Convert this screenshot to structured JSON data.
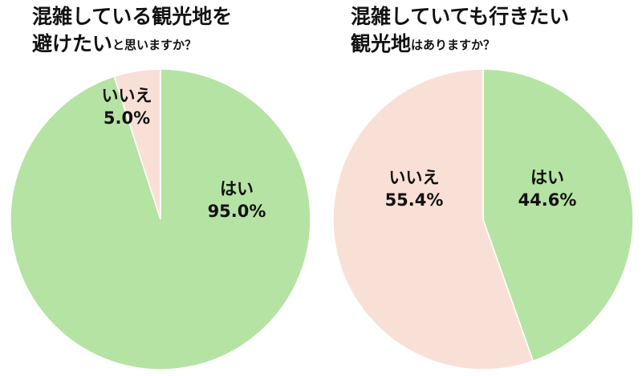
{
  "chart_data": [
    {
      "type": "pie",
      "title": [
        "混雑している観光地を",
        "避けたい",
        "と思いますか？"
      ],
      "categories": [
        "はい",
        "いいえ"
      ],
      "values": [
        95.0,
        5.0
      ],
      "value_labels": [
        "95.0%",
        "5.0%"
      ],
      "colors": [
        "#b5e3a3",
        "#f9e0d6"
      ]
    },
    {
      "type": "pie",
      "title": [
        "混雑していても行きたい",
        "観光地",
        "はありますか？"
      ],
      "categories": [
        "はい",
        "いいえ"
      ],
      "values": [
        44.6,
        55.4
      ],
      "value_labels": [
        "44.6%",
        "55.4%"
      ],
      "colors": [
        "#b5e3a3",
        "#f9e0d6"
      ]
    }
  ]
}
